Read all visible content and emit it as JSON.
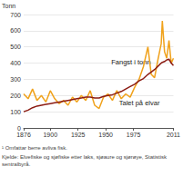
{
  "chart_data": {
    "type": "line",
    "ylabel": "Tonn",
    "x": [
      1876,
      1880,
      1884,
      1888,
      1892,
      1896,
      1900,
      1904,
      1908,
      1912,
      1916,
      1920,
      1924,
      1928,
      1932,
      1936,
      1940,
      1944,
      1948,
      1952,
      1956,
      1960,
      1964,
      1968,
      1972,
      1976,
      1980,
      1984,
      1988,
      1991,
      1994,
      1997,
      2000,
      2001,
      2003,
      2005,
      2007,
      2009,
      2011
    ],
    "series": [
      {
        "name": "Fangst i tonn",
        "color": "#f0a21c",
        "values": [
          210,
          180,
          240,
          170,
          200,
          160,
          230,
          180,
          150,
          170,
          140,
          190,
          160,
          200,
          170,
          230,
          140,
          120,
          190,
          210,
          170,
          230,
          180,
          210,
          190,
          250,
          300,
          380,
          500,
          330,
          310,
          420,
          520,
          660,
          470,
          430,
          540,
          400,
          430
        ]
      },
      {
        "name": "Talet på elvar",
        "color": "#8c1c13",
        "values": [
          100,
          110,
          125,
          135,
          140,
          145,
          150,
          155,
          160,
          165,
          170,
          175,
          180,
          185,
          190,
          190,
          185,
          185,
          195,
          200,
          205,
          215,
          225,
          240,
          255,
          270,
          290,
          305,
          330,
          345,
          360,
          380,
          400,
          405,
          410,
          420,
          425,
          400,
          385
        ]
      }
    ],
    "xlim": [
      1876,
      2011
    ],
    "xticks": [
      1876,
      1900,
      1925,
      1950,
      1975,
      2011
    ],
    "ylim": [
      0,
      700
    ],
    "yticks": [
      0,
      100,
      200,
      300,
      400,
      500,
      600,
      700
    ],
    "grid": true,
    "notes": [
      "¹ Omfattar berre avliva fisk.",
      "Kjelde: Elvefiske og sjøfiske etter laks, sjøaure og sjørøye, Statistisk sentralbyrå."
    ]
  }
}
